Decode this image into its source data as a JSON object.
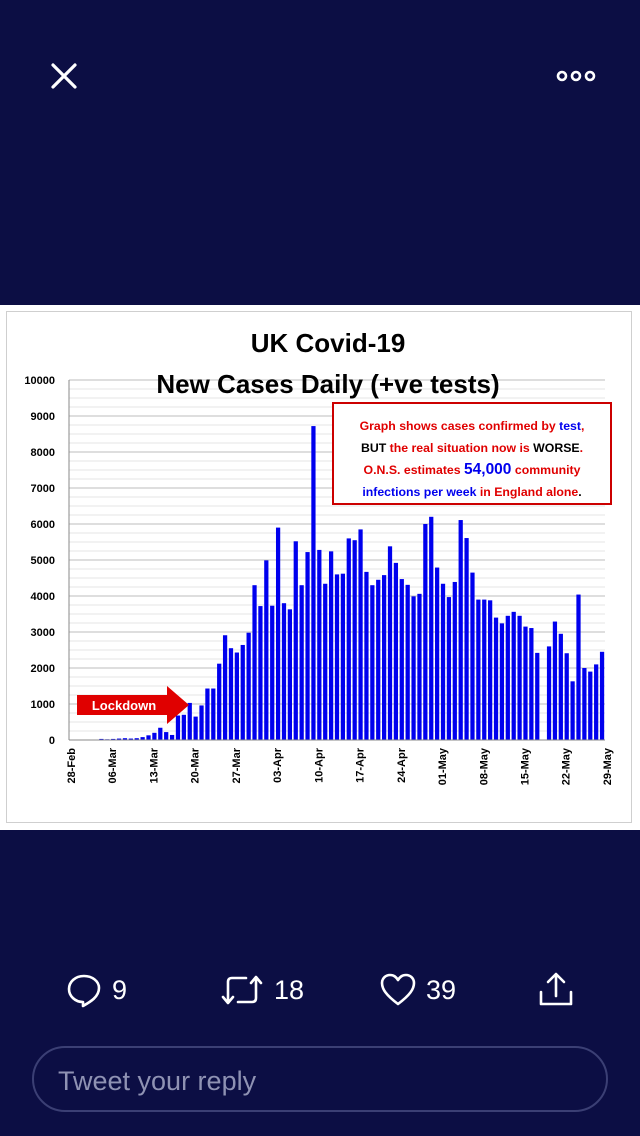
{
  "header": {
    "close_icon": "close-icon",
    "more_icon": "more-horizontal-icon"
  },
  "chart_data": {
    "type": "bar",
    "title": "UK Covid-19",
    "subtitle": "New Cases Daily (+ve tests)",
    "ylim": [
      0,
      10000
    ],
    "yticks": [
      0,
      1000,
      2000,
      3000,
      4000,
      5000,
      6000,
      7000,
      8000,
      9000,
      10000
    ],
    "xtick_labels": [
      "28-Feb",
      "06-Mar",
      "13-Mar",
      "20-Mar",
      "27-Mar",
      "03-Apr",
      "10-Apr",
      "17-Apr",
      "24-Apr",
      "01-May",
      "08-May",
      "15-May",
      "22-May",
      "29-May"
    ],
    "grid": true,
    "bar_color": "#0000ee",
    "series": [
      {
        "values": [
          0,
          0,
          0,
          0,
          0,
          30,
          20,
          30,
          40,
          50,
          40,
          50,
          80,
          130,
          200,
          340,
          220,
          140,
          680,
          700,
          1030,
          650,
          960,
          1430,
          1430,
          2120,
          2910,
          2550,
          2430,
          2640,
          2980,
          4300,
          3720,
          4990,
          3730,
          5900,
          3800,
          3630,
          5520,
          4300,
          5220,
          8720,
          5280,
          4340,
          5240,
          4600,
          4620,
          5600,
          5550,
          5850,
          4670,
          4300,
          4450,
          4580,
          5380,
          4920,
          4470,
          4310,
          3990,
          4060,
          6000,
          6200,
          4790,
          4340,
          3970,
          4390,
          6110,
          5610,
          4650,
          3900,
          3900,
          3880,
          3400,
          3240,
          3450,
          3560,
          3450,
          3150,
          3110,
          2420,
          0,
          2600,
          3290,
          2950,
          2410,
          1630,
          4040,
          2000,
          1900,
          2100,
          2450
        ]
      }
    ],
    "annotation": {
      "lines": [
        [
          {
            "text": "Graph shows cases confirmed by ",
            "color": "#e00000"
          },
          {
            "text": "test",
            "color": "#0000ee"
          },
          {
            "text": ",",
            "color": "#e00000"
          }
        ],
        [
          {
            "text": "BUT ",
            "color": "#000000"
          },
          {
            "text": "the real situation now is ",
            "color": "#e00000"
          },
          {
            "text": "WORSE",
            "color": "#000000"
          },
          {
            "text": ".",
            "color": "#e00000"
          }
        ],
        [
          {
            "text": "O.N.S. estimates ",
            "color": "#e00000"
          },
          {
            "text": "54,000",
            "color": "#0000ee",
            "big": true
          },
          {
            "text": " community",
            "color": "#e00000"
          }
        ],
        [
          {
            "text": "infections per week ",
            "color": "#0000ee"
          },
          {
            "text": "in England alone",
            "color": "#e00000"
          },
          {
            "text": ".",
            "color": "#000000"
          }
        ]
      ],
      "border_color": "#cc0000"
    },
    "lockdown_label": "Lockdown",
    "lockdown_color": "#e00000"
  },
  "actions": {
    "reply": {
      "icon": "reply-icon",
      "count": "9"
    },
    "retweet": {
      "icon": "retweet-icon",
      "count": "18"
    },
    "like": {
      "icon": "heart-icon",
      "count": "39"
    },
    "share": {
      "icon": "share-icon"
    }
  },
  "reply_box": {
    "placeholder": "Tweet your reply"
  },
  "colors": {
    "background": "#0c0e44",
    "text": "#ffffff",
    "reply_border": "#3b3f74"
  }
}
